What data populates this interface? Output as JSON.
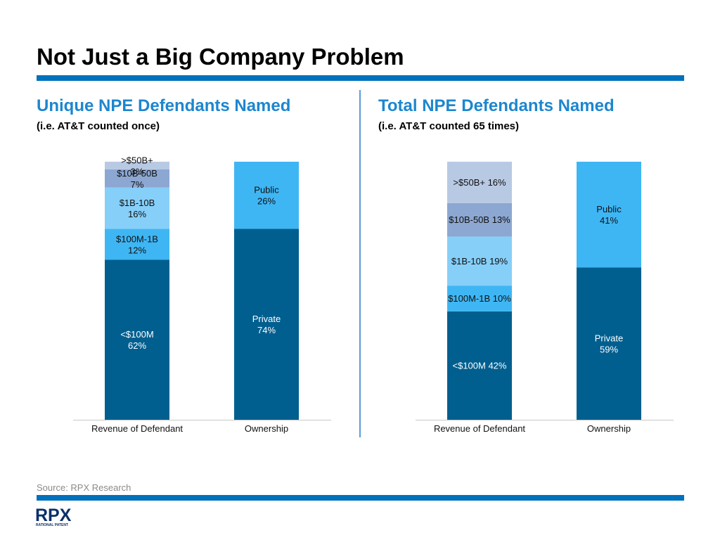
{
  "title": "Not Just a Big Company Problem",
  "left": {
    "heading": "Unique NPE Defendants Named",
    "subheading": "(i.e. AT&T counted once)"
  },
  "right": {
    "heading": "Total NPE Defendants Named",
    "subheading": "(i.e. AT&T counted 65 times)"
  },
  "source": "Source: RPX Research",
  "logo": {
    "text": "RPX",
    "tagline": "RATIONAL PATENT"
  },
  "colors": {
    "accent": "#0071bc",
    "heading": "#1d86cf",
    "lt_100m": "#015f8f",
    "100m_1b": "#3fb6f4",
    "1b_10b": "#86cff9",
    "10b_50b": "#8ca7d1",
    "gt_50b": "#b8c9e4",
    "private": "#015f8f",
    "public": "#3fb6f4"
  },
  "chart_data": [
    {
      "type": "bar",
      "stacked": true,
      "categories": [
        "Revenue of Defendant",
        "Ownership"
      ],
      "ylim": [
        0,
        100
      ],
      "bars": [
        {
          "category": "Revenue of Defendant",
          "segments": [
            {
              "label": "<$100M",
              "value": 62,
              "value_label": "62%",
              "color": "#015f8f",
              "text_color": "#ffffff",
              "layout": "stack"
            },
            {
              "label": "$100M-1B",
              "value": 12,
              "value_label": "12%",
              "color": "#3fb6f4",
              "text_color": "#111111",
              "layout": "stack"
            },
            {
              "label": "$1B-10B",
              "value": 16,
              "value_label": "16%",
              "color": "#86cff9",
              "text_color": "#111111",
              "layout": "stack"
            },
            {
              "label": "$10B-50B",
              "value": 7,
              "value_label": "7%",
              "color": "#8ca7d1",
              "text_color": "#111111",
              "layout": "stack"
            },
            {
              "label": ">$50B+",
              "value": 3,
              "value_label": "3%",
              "color": "#b8c9e4",
              "text_color": "#111111",
              "layout": "stack"
            }
          ]
        },
        {
          "category": "Ownership",
          "segments": [
            {
              "label": "Private",
              "value": 74,
              "value_label": "74%",
              "color": "#015f8f",
              "text_color": "#ffffff",
              "layout": "stack"
            },
            {
              "label": "Public",
              "value": 26,
              "value_label": "26%",
              "color": "#3fb6f4",
              "text_color": "#111111",
              "layout": "stack"
            }
          ]
        }
      ]
    },
    {
      "type": "bar",
      "stacked": true,
      "categories": [
        "Revenue of Defendant",
        "Ownership"
      ],
      "ylim": [
        0,
        100
      ],
      "bars": [
        {
          "category": "Revenue of Defendant",
          "segments": [
            {
              "label": "<$100M",
              "value": 42,
              "value_label": "42%",
              "color": "#015f8f",
              "text_color": "#ffffff",
              "layout": "inline"
            },
            {
              "label": "$100M-1B",
              "value": 10,
              "value_label": "10%",
              "color": "#3fb6f4",
              "text_color": "#111111",
              "layout": "inline"
            },
            {
              "label": "$1B-10B",
              "value": 19,
              "value_label": "19%",
              "color": "#86cff9",
              "text_color": "#111111",
              "layout": "inline"
            },
            {
              "label": "$10B-50B",
              "value": 13,
              "value_label": "13%",
              "color": "#8ca7d1",
              "text_color": "#111111",
              "layout": "inline"
            },
            {
              "label": ">$50B+",
              "value": 16,
              "value_label": "16%",
              "color": "#b8c9e4",
              "text_color": "#111111",
              "layout": "inline"
            }
          ]
        },
        {
          "category": "Ownership",
          "segments": [
            {
              "label": "Private",
              "value": 59,
              "value_label": "59%",
              "color": "#015f8f",
              "text_color": "#ffffff",
              "layout": "stack"
            },
            {
              "label": "Public",
              "value": 41,
              "value_label": "41%",
              "color": "#3fb6f4",
              "text_color": "#111111",
              "layout": "stack"
            }
          ]
        }
      ]
    }
  ]
}
